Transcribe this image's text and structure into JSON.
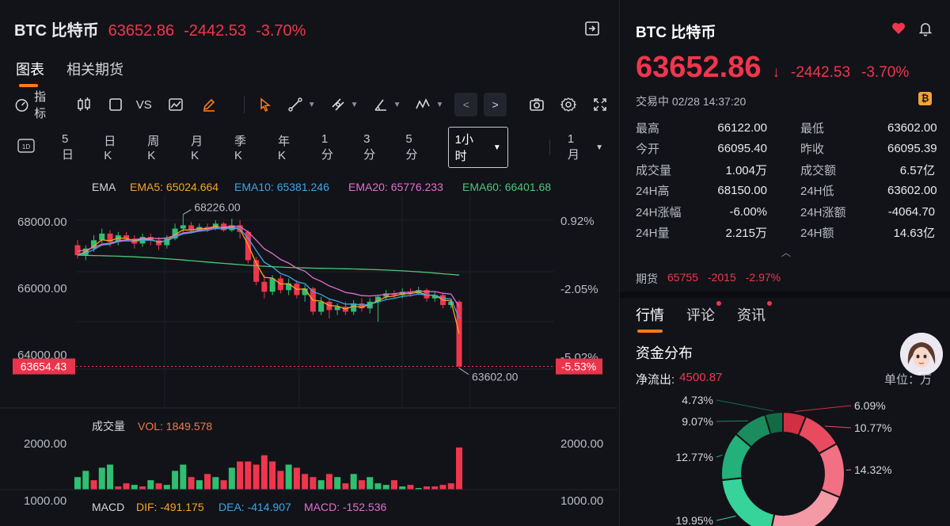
{
  "header": {
    "symbol": "BTC 比特币",
    "price": "63652.86",
    "change": "-2442.53",
    "change_pct": "-3.70%"
  },
  "tabs": [
    {
      "label": "图表"
    },
    {
      "label": "相关期货"
    }
  ],
  "toolbar": {
    "indicator_label": "指标",
    "vs_label": "VS"
  },
  "periods": [
    "5日",
    "日K",
    "周K",
    "月K",
    "季K",
    "年K",
    "1分",
    "3分",
    "5分"
  ],
  "period_selected": "1小时",
  "period_extra": "1月",
  "chart": {
    "ema_label": "EMA",
    "ema5": "EMA5: 65024.664",
    "ema10": "EMA10: 65381.246",
    "ema20": "EMA20: 65776.233",
    "ema60": "EMA60: 66401.68",
    "y_labels": [
      "68000.00",
      "66000.00",
      "64000.00"
    ],
    "pct_labels": [
      "0.92%",
      "-2.05%",
      "-5.02%"
    ],
    "high_label": "68226.00",
    "low_label": "63602.00",
    "current_left": "63654.43",
    "current_right": "-5.53%",
    "vol_title": "成交量",
    "vol_value": "VOL: 1849.578",
    "vol_y_top": "2000.00",
    "vol_y_bottom": "1000.00",
    "vol_y_top_right": "2000.00",
    "vol_y_bottom_right": "1000.00",
    "macd_title": "MACD",
    "dif": "DIF: -491.175",
    "dea": "DEA: -414.907",
    "macd": "MACD: -152.536",
    "colors": {
      "ema5": "#f5a623",
      "ema10": "#3aa7e8",
      "ema20": "#e070d0",
      "ema60": "#4cc77a",
      "up": "#2fbf71",
      "down": "#f0364d"
    }
  },
  "chart_data": {
    "type": "candlestick",
    "candles": [
      [
        67300,
        67000,
        67450,
        66900
      ],
      [
        67000,
        67200,
        67300,
        66850
      ],
      [
        67200,
        67450,
        67600,
        67100
      ],
      [
        67450,
        67650,
        67800,
        67350
      ],
      [
        67650,
        67400,
        67750,
        67250
      ],
      [
        67400,
        67600,
        67700,
        67300
      ],
      [
        67600,
        67500,
        67700,
        67400
      ],
      [
        67500,
        67350,
        67600,
        67200
      ],
      [
        67350,
        67550,
        67650,
        67250
      ],
      [
        67550,
        67450,
        67650,
        67300
      ],
      [
        67450,
        67300,
        67550,
        67150
      ],
      [
        67300,
        67500,
        67600,
        67200
      ],
      [
        67500,
        67800,
        67950,
        67450
      ],
      [
        67800,
        67900,
        68226,
        67700
      ],
      [
        67900,
        67750,
        68000,
        67650
      ],
      [
        67750,
        67850,
        67950,
        67700
      ],
      [
        67850,
        67800,
        67950,
        67700
      ],
      [
        67800,
        67950,
        68050,
        67750
      ],
      [
        67950,
        67750,
        68000,
        67700
      ],
      [
        67750,
        67900,
        68100,
        67700
      ],
      [
        67900,
        67700,
        68050,
        67500
      ],
      [
        67700,
        66850,
        67750,
        66750
      ],
      [
        66850,
        66200,
        66950,
        66100
      ],
      [
        66200,
        65900,
        66400,
        65700
      ],
      [
        65900,
        66300,
        66400,
        65800
      ],
      [
        66300,
        65950,
        66400,
        65850
      ],
      [
        65950,
        66150,
        66300,
        65800
      ],
      [
        66150,
        65800,
        66250,
        65700
      ],
      [
        65800,
        66000,
        66100,
        65600
      ],
      [
        66000,
        65300,
        66050,
        65200
      ],
      [
        65300,
        65600,
        65750,
        65200
      ],
      [
        65600,
        65350,
        65700,
        65100
      ],
      [
        65350,
        65450,
        65550,
        65200
      ],
      [
        65450,
        65300,
        65600,
        65200
      ],
      [
        65300,
        65550,
        65650,
        65200
      ],
      [
        65550,
        65400,
        65700,
        65300
      ],
      [
        65400,
        65600,
        65700,
        65250
      ],
      [
        65600,
        65750,
        65800,
        65000
      ],
      [
        65750,
        65850,
        65950,
        65650
      ],
      [
        65850,
        65800,
        65950,
        65700
      ],
      [
        65800,
        65900,
        66000,
        65700
      ],
      [
        65900,
        65850,
        66000,
        65750
      ],
      [
        65850,
        65950,
        66050,
        65800
      ],
      [
        65950,
        65700,
        66000,
        65600
      ],
      [
        65700,
        65800,
        65900,
        65600
      ],
      [
        65800,
        65500,
        65850,
        65400
      ],
      [
        65500,
        65600,
        65700,
        65400
      ],
      [
        65600,
        63654,
        65650,
        63602
      ]
    ],
    "volume": [
      [
        900,
        "up"
      ],
      [
        1100,
        "up"
      ],
      [
        800,
        "down"
      ],
      [
        1200,
        "up"
      ],
      [
        1300,
        "up"
      ],
      [
        600,
        "down"
      ],
      [
        700,
        "down"
      ],
      [
        650,
        "up"
      ],
      [
        600,
        "down"
      ],
      [
        800,
        "up"
      ],
      [
        700,
        "down"
      ],
      [
        650,
        "up"
      ],
      [
        1100,
        "up"
      ],
      [
        1300,
        "up"
      ],
      [
        900,
        "down"
      ],
      [
        800,
        "up"
      ],
      [
        1000,
        "down"
      ],
      [
        900,
        "up"
      ],
      [
        800,
        "down"
      ],
      [
        1200,
        "up"
      ],
      [
        1400,
        "down"
      ],
      [
        1400,
        "down"
      ],
      [
        1300,
        "down"
      ],
      [
        1600,
        "down"
      ],
      [
        1400,
        "down"
      ],
      [
        1100,
        "down"
      ],
      [
        1300,
        "up"
      ],
      [
        1200,
        "down"
      ],
      [
        1000,
        "down"
      ],
      [
        900,
        "down"
      ],
      [
        800,
        "up"
      ],
      [
        1000,
        "down"
      ],
      [
        900,
        "up"
      ],
      [
        700,
        "down"
      ],
      [
        1000,
        "up"
      ],
      [
        800,
        "down"
      ],
      [
        900,
        "up"
      ],
      [
        700,
        "up"
      ],
      [
        650,
        "up"
      ],
      [
        800,
        "down"
      ],
      [
        600,
        "up"
      ],
      [
        650,
        "down"
      ],
      [
        550,
        "up"
      ],
      [
        600,
        "down"
      ],
      [
        600,
        "down"
      ],
      [
        650,
        "down"
      ],
      [
        700,
        "down"
      ],
      [
        1849.578,
        "down"
      ]
    ],
    "y_range": [
      63000,
      68600
    ],
    "vol_range": [
      500,
      2100
    ]
  },
  "right": {
    "title": "BTC  比特币",
    "price": "63652.86",
    "arrow": "↓",
    "change": "-2442.53",
    "change_pct": "-3.70%",
    "status": "交易中 02/28 14:37:20",
    "badge": "₿",
    "stats": [
      {
        "l1": "最高",
        "v1": "66122.00",
        "c1": "up",
        "l2": "最低",
        "v2": "63602.00",
        "c2": "down"
      },
      {
        "l1": "今开",
        "v1": "66095.40",
        "c1": "up",
        "l2": "昨收",
        "v2": "66095.39",
        "c2": "muted"
      },
      {
        "l1": "成交量",
        "v1": "1.004万",
        "c1": "",
        "l2": "成交额",
        "v2": "6.57亿",
        "c2": ""
      },
      {
        "l1": "24H高",
        "v1": "68150.00",
        "c1": "",
        "l2": "24H低",
        "v2": "63602.00",
        "c2": ""
      },
      {
        "l1": "24H涨幅",
        "v1": "-6.00%",
        "c1": "",
        "l2": "24H涨额",
        "v2": "-4064.70",
        "c2": ""
      },
      {
        "l1": "24H量",
        "v1": "2.215万",
        "c1": "",
        "l2": "24H额",
        "v2": "14.63亿",
        "c2": ""
      }
    ],
    "futures": {
      "label": "期货",
      "price": "65755",
      "change": "-2015",
      "pct": "-2.97%"
    },
    "tabs": [
      {
        "label": "行情"
      },
      {
        "label": "评论"
      },
      {
        "label": "资讯"
      }
    ],
    "fund_title": "资金分布",
    "net_label": "净流出:",
    "net_value": "4500.87",
    "unit": "单位：万"
  },
  "donut": {
    "segments": [
      {
        "label": "6.09%",
        "pct": 6.09,
        "color": "#d22f44"
      },
      {
        "label": "10.77%",
        "pct": 10.77,
        "color": "#e84a5f"
      },
      {
        "label": "14.32%",
        "pct": 14.32,
        "color": "#f27083"
      },
      {
        "label": "",
        "pct": 22.0,
        "color": "#f49aa6"
      },
      {
        "label": "19.95%",
        "pct": 19.95,
        "color": "#36d49a"
      },
      {
        "label": "12.77%",
        "pct": 12.77,
        "color": "#23b07a"
      },
      {
        "label": "9.07%",
        "pct": 9.07,
        "color": "#1a8c5e"
      },
      {
        "label": "4.73%",
        "pct": 4.73,
        "color": "#136b46"
      }
    ]
  }
}
